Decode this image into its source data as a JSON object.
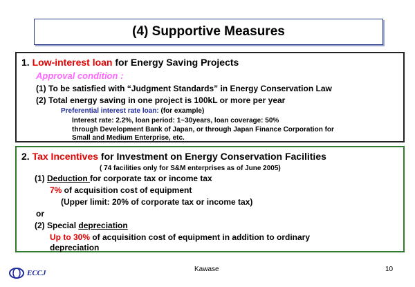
{
  "title": "(4) Supportive Measures",
  "section1": {
    "num": "1. ",
    "highlight": "Low-interest loan",
    "rest": " for Energy Saving Projects",
    "approval_label": "Approval condition",
    "approval_colon": " :",
    "cond1": "(1) To be satisfied with “Judgment Standards” in Energy Conservation Law",
    "cond2": "(2) Total energy saving in one project is 100kL or more per year",
    "pref_label": "Preferential interest rate loan:",
    "pref_example": " (for example)",
    "rate_line": "Interest rate: 2.2%,  loan period: 1~30years,  loan coverage: 50%",
    "bank_line1": "through Development Bank of Japan, or through Japan Finance Corporation for",
    "bank_line2": "Small and  Medium Enterprise, etc."
  },
  "section2": {
    "num": "2. ",
    "highlight": "Tax Incentives",
    "rest": " for Investment on Energy Conservation Facilities",
    "note": "( 74 facilities only for S&M enterprises as of June 2005)",
    "item1_prefix": "(1) ",
    "item1_underlined": "Deduction ",
    "item1_rest": "for corporate tax or income tax",
    "item1_pct": "7%",
    "item1_pct_rest": " of acquisition cost of equipment",
    "item1_limit": "(Upper limit: 20% of corporate tax or income tax)",
    "or": "or",
    "item2_prefix": "(2) Special ",
    "item2_underlined": "depreciation",
    "item2_pct": "Up to 30%",
    "item2_pct_rest": " of acquisition cost of equipment in addition to ordinary",
    "item2_cont": "depreciation"
  },
  "footer": {
    "author": "Kawase",
    "page": "10",
    "logo_text": "ECCJ"
  },
  "colors": {
    "accent_red": "#e00000",
    "approval_pink": "#ff66ff",
    "note_blue": "#1f2a9a",
    "box2_border": "#2f7a2f"
  }
}
